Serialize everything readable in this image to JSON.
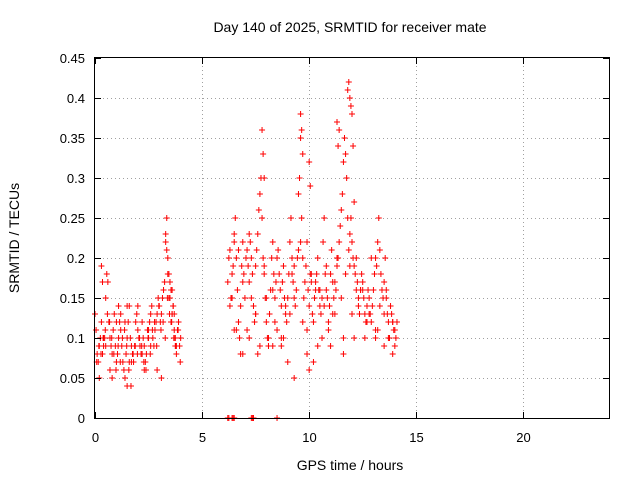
{
  "chart_data": {
    "type": "scatter",
    "title": "Day 140 of 2025, SRMTID for receiver mate",
    "xlabel": "GPS time / hours",
    "ylabel": "SRMTID / TECUs",
    "xlim": [
      0,
      24
    ],
    "ylim": [
      0,
      0.45
    ],
    "x_ticks": [
      0,
      5,
      10,
      15,
      20
    ],
    "y_ticks": [
      0,
      0.05,
      0.1,
      0.15,
      0.2,
      0.25,
      0.3,
      0.35,
      0.4,
      0.45
    ],
    "x_tick_labels": [
      "0",
      "5",
      "10",
      "15",
      "20"
    ],
    "y_tick_labels": [
      "0",
      "0.05",
      "0.1",
      "0.15",
      "0.2",
      "0.25",
      "0.3",
      "0.35",
      "0.4",
      "0.45"
    ],
    "grid": true,
    "marker": "plus",
    "color": "#ff0000",
    "series": [
      {
        "x": [
          0.0,
          0.05,
          0.1,
          0.15,
          0.2,
          0.25,
          0.3,
          0.35,
          0.4,
          0.45,
          0.5,
          0.55,
          0.6,
          0.65,
          0.7,
          0.75,
          0.8,
          0.85,
          0.9,
          0.95,
          1.0,
          1.05,
          1.1,
          1.15,
          1.2,
          1.25,
          1.3,
          1.35,
          1.4,
          1.45,
          1.5,
          1.55,
          1.6,
          1.65,
          1.7,
          1.75,
          1.8,
          1.85,
          1.9,
          1.95,
          2.0,
          2.05,
          2.1,
          2.15,
          2.2,
          2.25,
          2.3,
          2.35,
          2.4,
          2.45,
          2.5,
          2.55,
          2.6,
          2.65,
          2.7,
          2.75,
          2.8,
          2.85,
          2.9,
          2.95,
          3.0,
          3.05,
          3.1,
          3.15,
          3.2,
          3.25,
          3.3,
          3.35,
          3.4,
          3.45,
          3.5,
          3.55,
          3.6,
          3.65,
          3.7,
          3.75,
          3.8,
          3.85,
          3.9,
          3.95,
          4.0,
          0.08,
          0.18,
          0.28,
          0.38,
          0.48,
          0.58,
          0.68,
          0.78,
          0.88,
          0.98,
          1.08,
          1.18,
          1.28,
          1.38,
          1.48,
          1.58,
          1.68,
          1.78,
          1.88,
          1.98,
          2.08,
          2.18,
          2.28,
          2.38,
          2.48,
          2.58,
          2.68,
          2.78,
          2.88,
          2.98,
          3.08,
          3.18,
          3.28,
          3.38,
          3.48,
          3.58,
          3.68,
          3.78,
          3.88,
          3.98,
          0.3,
          0.35,
          0.4,
          0.7,
          0.8,
          1.0,
          1.1,
          1.2,
          1.5,
          1.6,
          2.0,
          2.2,
          2.5,
          3.3,
          3.35,
          3.4,
          3.45,
          3.5,
          3.55,
          3.6,
          3.65,
          3.7,
          3.75,
          3.8,
          0.2,
          0.5,
          1.4,
          1.5,
          1.7,
          2.3,
          2.6,
          2.9,
          3.1,
          3.6,
          3.7
        ],
        "y": [
          0.13,
          0.11,
          0.08,
          0.07,
          0.09,
          0.1,
          0.12,
          0.08,
          0.09,
          0.1,
          0.15,
          0.18,
          0.17,
          0.12,
          0.1,
          0.09,
          0.08,
          0.11,
          0.13,
          0.09,
          0.07,
          0.08,
          0.1,
          0.12,
          0.11,
          0.09,
          0.07,
          0.06,
          0.05,
          0.08,
          0.1,
          0.12,
          0.14,
          0.1,
          0.09,
          0.08,
          0.07,
          0.09,
          0.12,
          0.13,
          0.11,
          0.1,
          0.09,
          0.08,
          0.12,
          0.1,
          0.09,
          0.07,
          0.08,
          0.11,
          0.1,
          0.12,
          0.13,
          0.14,
          0.1,
          0.09,
          0.11,
          0.12,
          0.13,
          0.15,
          0.14,
          0.12,
          0.13,
          0.15,
          0.16,
          0.17,
          0.22,
          0.25,
          0.2,
          0.18,
          0.15,
          0.12,
          0.16,
          0.14,
          0.13,
          0.1,
          0.09,
          0.11,
          0.12,
          0.09,
          0.1,
          0.07,
          0.09,
          0.08,
          0.1,
          0.11,
          0.13,
          0.12,
          0.1,
          0.08,
          0.06,
          0.09,
          0.07,
          0.1,
          0.11,
          0.09,
          0.06,
          0.04,
          0.08,
          0.09,
          0.08,
          0.1,
          0.09,
          0.07,
          0.06,
          0.1,
          0.08,
          0.11,
          0.12,
          0.09,
          0.14,
          0.11,
          0.12,
          0.1,
          0.15,
          0.13,
          0.12,
          0.1,
          0.09,
          0.11,
          0.07,
          0.19,
          0.17,
          0.1,
          0.06,
          0.05,
          0.12,
          0.14,
          0.13,
          0.04,
          0.07,
          0.14,
          0.08,
          0.11,
          0.23,
          0.21,
          0.18,
          0.15,
          0.17,
          0.16,
          0.13,
          0.14,
          0.11,
          0.09,
          0.08,
          0.05,
          0.09,
          0.12,
          0.14,
          0.07,
          0.06,
          0.09,
          0.06,
          0.05,
          0.13,
          0.1
        ]
      },
      {
        "x": [
          6.2,
          6.25,
          6.3,
          6.35,
          6.4,
          6.45,
          6.5,
          6.55,
          6.6,
          6.65,
          6.7,
          6.75,
          6.8,
          6.85,
          6.9,
          6.95,
          7.0,
          7.05,
          7.1,
          7.15,
          7.2,
          7.25,
          7.3,
          7.35,
          7.4,
          7.45,
          7.5,
          7.55,
          7.6,
          7.65,
          7.7,
          7.75,
          7.8,
          7.85,
          7.9,
          7.95,
          8.0,
          8.05,
          8.1,
          8.15,
          8.2,
          8.25,
          8.3,
          8.35,
          8.4,
          8.45,
          8.5,
          8.55,
          8.6,
          8.65,
          8.7,
          8.75,
          8.8,
          8.85,
          8.9,
          8.95,
          9.0,
          9.05,
          9.1,
          9.15,
          9.2,
          9.25,
          9.3,
          9.35,
          9.4,
          9.45,
          9.5,
          9.55,
          9.6,
          9.65,
          9.7,
          9.75,
          9.8,
          9.85,
          9.9,
          9.95,
          10.0,
          10.05,
          10.1,
          10.15,
          10.2,
          10.25,
          10.3,
          10.35,
          10.4,
          10.45,
          10.5,
          10.55,
          10.6,
          10.65,
          10.7,
          10.75,
          10.8,
          10.85,
          10.9,
          10.95,
          11.0,
          11.05,
          11.1,
          11.15,
          11.2,
          11.25,
          11.3,
          11.35,
          11.4,
          11.45,
          11.5,
          11.55,
          11.6,
          11.65,
          11.7,
          11.75,
          11.8,
          11.85,
          11.9,
          11.95,
          12.0,
          12.05,
          12.1,
          12.15,
          12.2,
          12.25,
          12.3,
          12.35,
          12.4,
          12.45,
          12.5,
          12.55,
          12.6,
          12.65,
          12.7,
          12.75,
          12.8,
          12.85,
          12.9,
          12.95,
          13.0,
          13.05,
          13.1,
          13.15,
          13.2,
          13.25,
          13.3,
          13.35,
          13.4,
          13.45,
          13.5,
          13.55,
          13.6,
          13.65,
          13.7,
          13.75,
          13.8,
          13.85,
          13.9,
          13.95,
          14.0,
          14.05,
          14.1,
          6.3,
          6.5,
          6.7,
          6.9,
          7.1,
          7.3,
          7.5,
          7.7,
          7.9,
          8.1,
          8.3,
          8.5,
          8.7,
          8.9,
          9.1,
          9.3,
          9.5,
          9.7,
          9.9,
          10.1,
          10.3,
          10.5,
          10.7,
          10.9,
          11.1,
          11.3,
          11.5,
          11.7,
          11.9,
          12.1,
          12.3,
          12.5,
          12.7,
          12.9,
          13.1,
          13.3,
          13.5,
          13.7,
          13.9,
          6.4,
          6.8,
          7.2,
          7.6,
          8.0,
          8.4,
          8.8,
          9.2,
          9.6,
          10.0,
          10.4,
          10.8,
          11.2,
          11.6,
          12.0,
          12.4,
          12.8,
          13.2,
          13.6,
          14.0,
          7.8,
          7.85,
          7.9,
          9.6,
          9.65,
          9.7,
          10.0,
          10.05,
          11.3,
          11.35,
          11.4,
          11.8,
          11.85,
          11.9,
          11.95,
          12.0,
          12.05,
          12.1,
          6.5,
          6.6,
          6.9,
          7.2,
          7.5,
          8.3,
          8.7,
          9.0,
          9.3,
          9.9,
          10.2,
          10.6,
          11.0,
          11.6,
          12.2,
          12.6,
          13.1,
          13.5,
          13.9
        ],
        "y": [
          0.17,
          0.2,
          0.21,
          0.15,
          0.18,
          0.19,
          0.23,
          0.25,
          0.2,
          0.16,
          0.12,
          0.1,
          0.14,
          0.19,
          0.22,
          0.18,
          0.15,
          0.2,
          0.21,
          0.19,
          0.17,
          0.22,
          0.2,
          0.18,
          0.14,
          0.12,
          0.19,
          0.21,
          0.23,
          0.26,
          0.28,
          0.3,
          0.25,
          0.2,
          0.18,
          0.15,
          0.12,
          0.1,
          0.09,
          0.13,
          0.16,
          0.2,
          0.22,
          0.18,
          0.15,
          0.17,
          0.2,
          0.21,
          0.18,
          0.16,
          0.14,
          0.17,
          0.19,
          0.15,
          0.13,
          0.12,
          0.15,
          0.18,
          0.22,
          0.25,
          0.2,
          0.17,
          0.15,
          0.14,
          0.16,
          0.2,
          0.28,
          0.3,
          0.35,
          0.25,
          0.2,
          0.15,
          0.17,
          0.19,
          0.22,
          0.16,
          0.14,
          0.18,
          0.17,
          0.13,
          0.12,
          0.15,
          0.16,
          0.18,
          0.2,
          0.16,
          0.14,
          0.13,
          0.15,
          0.22,
          0.25,
          0.18,
          0.16,
          0.15,
          0.12,
          0.14,
          0.18,
          0.21,
          0.17,
          0.15,
          0.13,
          0.16,
          0.19,
          0.2,
          0.22,
          0.24,
          0.26,
          0.28,
          0.32,
          0.35,
          0.33,
          0.3,
          0.25,
          0.21,
          0.23,
          0.25,
          0.22,
          0.2,
          0.19,
          0.18,
          0.2,
          0.17,
          0.15,
          0.13,
          0.16,
          0.18,
          0.17,
          0.15,
          0.13,
          0.12,
          0.14,
          0.16,
          0.15,
          0.13,
          0.12,
          0.14,
          0.16,
          0.18,
          0.2,
          0.19,
          0.22,
          0.25,
          0.21,
          0.18,
          0.16,
          0.15,
          0.17,
          0.2,
          0.15,
          0.13,
          0.12,
          0.1,
          0.14,
          0.13,
          0.12,
          0.11,
          0.09,
          0.1,
          0.12,
          0.14,
          0.11,
          0.21,
          0.17,
          0.11,
          0.15,
          0.13,
          0.09,
          0.19,
          0.1,
          0.16,
          0.11,
          0.09,
          0.14,
          0.13,
          0.19,
          0.21,
          0.12,
          0.11,
          0.18,
          0.17,
          0.16,
          0.14,
          0.11,
          0.13,
          0.2,
          0.15,
          0.18,
          0.19,
          0.1,
          0.14,
          0.16,
          0.12,
          0.2,
          0.11,
          0.14,
          0.13,
          0.1,
          0.12,
          0.15,
          0.08,
          0.23,
          0.08,
          0.15,
          0.12,
          0.1,
          0.18,
          0.22,
          0.06,
          0.09,
          0.19,
          0.17,
          0.1,
          0.13,
          0.16,
          0.13,
          0.11,
          0.16,
          0.11,
          0.36,
          0.33,
          0.3,
          0.38,
          0.36,
          0.33,
          0.32,
          0.29,
          0.37,
          0.34,
          0.36,
          0.41,
          0.42,
          0.4,
          0.39,
          0.38,
          0.34,
          0.27,
          0.22,
          0.11,
          0.08,
          0.1,
          0.13,
          0.09,
          0.1,
          0.07,
          0.05,
          0.08,
          0.07,
          0.1,
          0.09,
          0.08,
          0.16,
          0.1,
          0.1,
          0.09,
          0.08
        ],
        "rng": []
      },
      {
        "x": [
          6.2,
          6.25,
          6.4,
          6.45,
          6.5,
          7.3,
          7.35,
          7.4,
          8.5
        ],
        "y": [
          0,
          0,
          0,
          0,
          0,
          0,
          0,
          0,
          0
        ]
      }
    ]
  }
}
